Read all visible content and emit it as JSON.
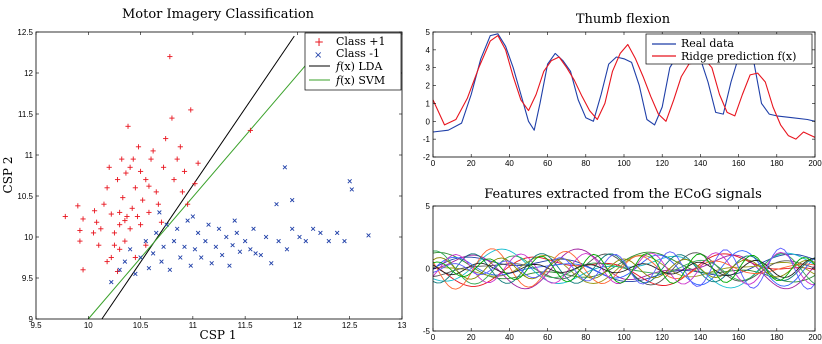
{
  "chart_data": [
    {
      "type": "scatter",
      "title": "Motor Imagery Classification",
      "xlabel": "CSP 1",
      "ylabel": "CSP 2",
      "xlim": [
        9.5,
        13
      ],
      "ylim": [
        9,
        12.5
      ],
      "xticks": [
        "9.5",
        "10",
        "10.5",
        "11",
        "11.5",
        "12",
        "12.5",
        "13"
      ],
      "yticks": [
        "9",
        "9.5",
        "10",
        "10.5",
        "11",
        "11.5",
        "12",
        "12.5"
      ],
      "legend_position": "top-right",
      "series": [
        {
          "name": "Class +1",
          "marker": "+",
          "color": "#e8141e",
          "points": [
            [
              9.78,
              10.25
            ],
            [
              9.9,
              10.38
            ],
            [
              9.95,
              10.22
            ],
            [
              9.92,
              9.95
            ],
            [
              9.95,
              9.6
            ],
            [
              9.92,
              10.08
            ],
            [
              10.05,
              10.05
            ],
            [
              10.08,
              10.18
            ],
            [
              10.1,
              9.9
            ],
            [
              10.12,
              10.1
            ],
            [
              10.15,
              10.4
            ],
            [
              10.18,
              10.6
            ],
            [
              10.2,
              10.85
            ],
            [
              10.22,
              10.28
            ],
            [
              10.22,
              9.75
            ],
            [
              10.25,
              10.05
            ],
            [
              10.25,
              9.9
            ],
            [
              10.28,
              10.7
            ],
            [
              10.3,
              10.3
            ],
            [
              10.3,
              10.15
            ],
            [
              10.3,
              9.85
            ],
            [
              10.32,
              10.95
            ],
            [
              10.33,
              10.48
            ],
            [
              10.35,
              10.2
            ],
            [
              10.35,
              9.95
            ],
            [
              10.37,
              10.25
            ],
            [
              10.38,
              11.35
            ],
            [
              10.4,
              10.85
            ],
            [
              10.4,
              10.1
            ],
            [
              10.42,
              10.35
            ],
            [
              10.43,
              10.95
            ],
            [
              10.45,
              10.6
            ],
            [
              10.45,
              9.75
            ],
            [
              10.47,
              10.25
            ],
            [
              10.48,
              11.1
            ],
            [
              10.5,
              10.8
            ],
            [
              10.5,
              10.15
            ],
            [
              10.52,
              10.45
            ],
            [
              10.55,
              10.7
            ],
            [
              10.55,
              9.9
            ],
            [
              10.58,
              10.3
            ],
            [
              10.6,
              10.95
            ],
            [
              10.62,
              11.05
            ],
            [
              10.65,
              10.55
            ],
            [
              10.67,
              10.4
            ],
            [
              10.7,
              10.18
            ],
            [
              10.72,
              10.85
            ],
            [
              10.74,
              11.2
            ],
            [
              10.78,
              12.2
            ],
            [
              10.8,
              11.45
            ],
            [
              10.82,
              10.7
            ],
            [
              10.85,
              10.95
            ],
            [
              10.88,
              11.1
            ],
            [
              10.9,
              10.55
            ],
            [
              10.92,
              10.8
            ],
            [
              10.95,
              10.4
            ],
            [
              10.98,
              11.55
            ],
            [
              11.02,
              10.65
            ],
            [
              11.05,
              10.9
            ],
            [
              11.55,
              11.3
            ],
            [
              10.28,
              9.58
            ],
            [
              10.18,
              9.7
            ],
            [
              10.06,
              10.32
            ],
            [
              10.36,
              10.78
            ],
            [
              10.58,
              10.62
            ]
          ]
        },
        {
          "name": "Class -1",
          "marker": "x",
          "color": "#1f3fa8",
          "points": [
            [
              10.22,
              9.45
            ],
            [
              10.3,
              9.6
            ],
            [
              10.35,
              9.7
            ],
            [
              10.4,
              9.85
            ],
            [
              10.45,
              9.55
            ],
            [
              10.5,
              9.75
            ],
            [
              10.55,
              9.95
            ],
            [
              10.58,
              9.62
            ],
            [
              10.62,
              9.8
            ],
            [
              10.65,
              10.05
            ],
            [
              10.7,
              9.7
            ],
            [
              10.72,
              9.88
            ],
            [
              10.75,
              10.15
            ],
            [
              10.78,
              9.6
            ],
            [
              10.82,
              9.95
            ],
            [
              10.85,
              10.1
            ],
            [
              10.88,
              9.75
            ],
            [
              10.92,
              9.88
            ],
            [
              10.95,
              10.2
            ],
            [
              10.98,
              9.65
            ],
            [
              11.02,
              9.85
            ],
            [
              11.05,
              10.05
            ],
            [
              11.08,
              9.75
            ],
            [
              11.12,
              9.95
            ],
            [
              11.15,
              10.15
            ],
            [
              11.18,
              9.68
            ],
            [
              11.22,
              9.88
            ],
            [
              11.25,
              10.1
            ],
            [
              11.28,
              9.78
            ],
            [
              11.32,
              10.0
            ],
            [
              11.35,
              9.65
            ],
            [
              11.38,
              9.9
            ],
            [
              11.42,
              10.05
            ],
            [
              11.45,
              9.82
            ],
            [
              11.5,
              9.95
            ],
            [
              11.55,
              9.85
            ],
            [
              11.58,
              10.1
            ],
            [
              11.6,
              9.8
            ],
            [
              11.65,
              9.78
            ],
            [
              11.7,
              10.0
            ],
            [
              11.75,
              9.68
            ],
            [
              11.8,
              10.4
            ],
            [
              11.82,
              9.95
            ],
            [
              11.88,
              10.85
            ],
            [
              11.9,
              9.85
            ],
            [
              11.95,
              10.1
            ],
            [
              12.02,
              10.0
            ],
            [
              12.08,
              9.95
            ],
            [
              12.15,
              10.1
            ],
            [
              12.22,
              10.05
            ],
            [
              12.3,
              9.95
            ],
            [
              12.38,
              10.05
            ],
            [
              12.45,
              9.95
            ],
            [
              12.5,
              10.68
            ],
            [
              12.52,
              10.58
            ],
            [
              12.68,
              10.02
            ],
            [
              11.0,
              10.25
            ],
            [
              10.68,
              10.3
            ],
            [
              11.4,
              10.2
            ],
            [
              11.95,
              10.45
            ]
          ]
        }
      ],
      "lines": [
        {
          "name": "$f(x)$ LDA",
          "label_parts": [
            "f",
            "(x) LDA"
          ],
          "color": "#000000",
          "x": [
            10.13,
            11.97
          ],
          "y": [
            9.0,
            12.45
          ]
        },
        {
          "name": "$f(x)$ SVM",
          "label_parts": [
            "f",
            "(x) SVM"
          ],
          "color": "#3aa12a",
          "x": [
            10.0,
            12.15
          ],
          "y": [
            9.0,
            12.2
          ]
        }
      ]
    },
    {
      "type": "line",
      "title": "Thumb flexion",
      "xlim": [
        0,
        200
      ],
      "ylim": [
        -2,
        5
      ],
      "xticks": [
        "0",
        "20",
        "40",
        "60",
        "80",
        "100",
        "120",
        "140",
        "160",
        "180",
        "200"
      ],
      "yticks": [
        "-2",
        "-1",
        "0",
        "1",
        "2",
        "3",
        "4",
        "5"
      ],
      "legend_position": "top-right",
      "series": [
        {
          "name": "Real data",
          "color": "#1f3fa8",
          "x": [
            0,
            8,
            15,
            20,
            25,
            30,
            34,
            38,
            42,
            46,
            50,
            53,
            56,
            60,
            64,
            68,
            72,
            76,
            80,
            84,
            88,
            92,
            96,
            100,
            104,
            108,
            112,
            116,
            120,
            124,
            128,
            132,
            136,
            140,
            144,
            148,
            152,
            156,
            160,
            164,
            168,
            172,
            176,
            180,
            188,
            196,
            200
          ],
          "y": [
            -0.6,
            -0.5,
            -0.1,
            1.5,
            3.5,
            4.8,
            4.9,
            4.2,
            3.0,
            1.5,
            0.0,
            -0.5,
            1.0,
            3.2,
            3.8,
            3.4,
            2.8,
            1.2,
            0.2,
            0.0,
            1.5,
            3.2,
            3.6,
            3.5,
            3.3,
            2.0,
            0.1,
            -0.2,
            0.8,
            3.0,
            3.7,
            3.5,
            3.8,
            3.5,
            2.2,
            0.5,
            0.4,
            2.2,
            3.6,
            3.5,
            3.3,
            1.0,
            0.4,
            0.3,
            0.2,
            0.1,
            0.0
          ]
        },
        {
          "name": "Ridge prediction f(x)",
          "color": "#e8141e",
          "x": [
            0,
            6,
            12,
            18,
            24,
            30,
            34,
            38,
            42,
            46,
            50,
            54,
            58,
            62,
            66,
            70,
            74,
            78,
            82,
            86,
            90,
            94,
            98,
            102,
            106,
            110,
            114,
            118,
            122,
            126,
            130,
            134,
            138,
            142,
            146,
            150,
            154,
            158,
            162,
            166,
            170,
            174,
            178,
            182,
            186,
            190,
            194,
            200
          ],
          "y": [
            1.2,
            -0.2,
            0.1,
            1.3,
            3.0,
            4.5,
            4.8,
            4.0,
            2.5,
            1.2,
            0.6,
            1.5,
            2.8,
            3.4,
            3.6,
            3.0,
            2.3,
            1.4,
            0.6,
            0.1,
            1.0,
            2.8,
            3.8,
            4.3,
            3.5,
            2.5,
            1.4,
            0.4,
            0.0,
            1.2,
            2.5,
            3.2,
            3.3,
            3.5,
            3.0,
            1.5,
            0.5,
            0.3,
            1.5,
            2.6,
            2.7,
            2.2,
            0.8,
            -0.2,
            -0.8,
            -1.0,
            -0.6,
            -0.9
          ]
        }
      ]
    },
    {
      "type": "line",
      "title": "Features extracted from the ECoG signals",
      "xlim": [
        0,
        200
      ],
      "ylim": [
        -5,
        5
      ],
      "xticks": [
        "0",
        "20",
        "40",
        "60",
        "80",
        "100",
        "120",
        "140",
        "160",
        "180",
        "200"
      ],
      "yticks": [
        "-5",
        "0",
        "5"
      ],
      "num_series": 16,
      "series_colors": [
        "#1f3fa8",
        "#2e8b2e",
        "#e8141e",
        "#17becf",
        "#a020a0",
        "#9a9a1a",
        "#555555",
        "#3366ff",
        "#33aa55",
        "#ff6633",
        "#0f7a7a",
        "#cc33cc",
        "#888800",
        "#222222",
        "#5a5aff",
        "#00aa00"
      ]
    }
  ]
}
